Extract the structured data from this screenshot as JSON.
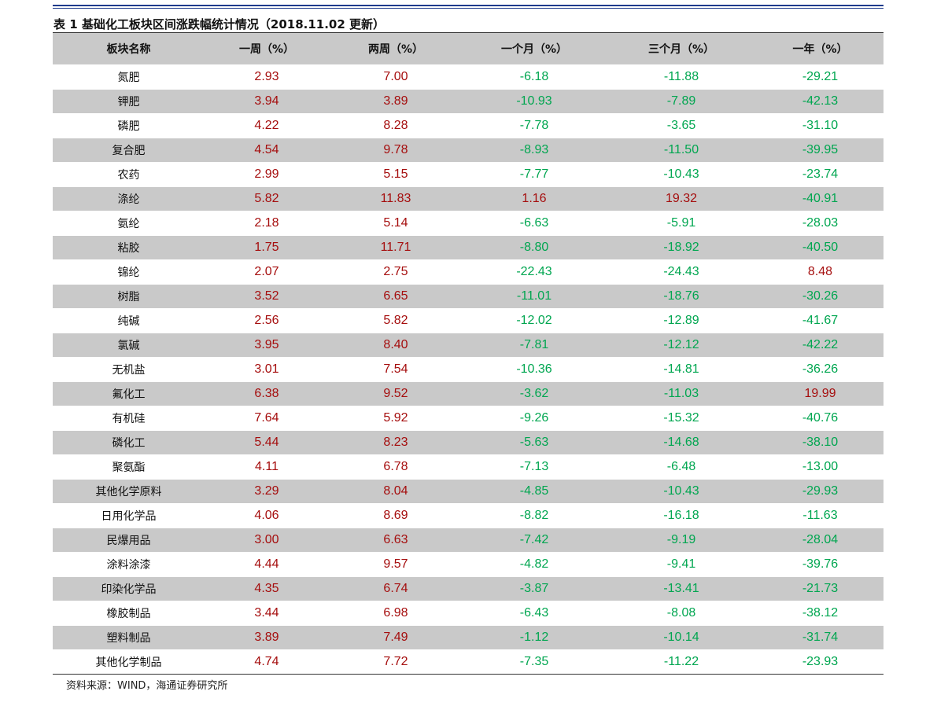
{
  "title": "表 1 基础化工板块区间涨跌幅统计情况（2018.11.02 更新）",
  "table": {
    "headers": [
      "板块名称",
      "一周（%）",
      "两周（%）",
      "一个月（%）",
      "三个月（%）",
      "一年（%）"
    ],
    "rows": [
      [
        "氮肥",
        "2.93",
        "7.00",
        "-6.18",
        "-11.88",
        "-29.21"
      ],
      [
        "钾肥",
        "3.94",
        "3.89",
        "-10.93",
        "-7.89",
        "-42.13"
      ],
      [
        "磷肥",
        "4.22",
        "8.28",
        "-7.78",
        "-3.65",
        "-31.10"
      ],
      [
        "复合肥",
        "4.54",
        "9.78",
        "-8.93",
        "-11.50",
        "-39.95"
      ],
      [
        "农药",
        "2.99",
        "5.15",
        "-7.77",
        "-10.43",
        "-23.74"
      ],
      [
        "涤纶",
        "5.82",
        "11.83",
        "1.16",
        "19.32",
        "-40.91"
      ],
      [
        "氨纶",
        "2.18",
        "5.14",
        "-6.63",
        "-5.91",
        "-28.03"
      ],
      [
        "粘胶",
        "1.75",
        "11.71",
        "-8.80",
        "-18.92",
        "-40.50"
      ],
      [
        "锦纶",
        "2.07",
        "2.75",
        "-22.43",
        "-24.43",
        "8.48"
      ],
      [
        "树脂",
        "3.52",
        "6.65",
        "-11.01",
        "-18.76",
        "-30.26"
      ],
      [
        "纯碱",
        "2.56",
        "5.82",
        "-12.02",
        "-12.89",
        "-41.67"
      ],
      [
        "氯碱",
        "3.95",
        "8.40",
        "-7.81",
        "-12.12",
        "-42.22"
      ],
      [
        "无机盐",
        "3.01",
        "7.54",
        "-10.36",
        "-14.81",
        "-36.26"
      ],
      [
        "氟化工",
        "6.38",
        "9.52",
        "-3.62",
        "-11.03",
        "19.99"
      ],
      [
        "有机硅",
        "7.64",
        "5.92",
        "-9.26",
        "-15.32",
        "-40.76"
      ],
      [
        "磷化工",
        "5.44",
        "8.23",
        "-5.63",
        "-14.68",
        "-38.10"
      ],
      [
        "聚氨酯",
        "4.11",
        "6.78",
        "-7.13",
        "-6.48",
        "-13.00"
      ],
      [
        "其他化学原料",
        "3.29",
        "8.04",
        "-4.85",
        "-10.43",
        "-29.93"
      ],
      [
        "日用化学品",
        "4.06",
        "8.69",
        "-8.82",
        "-16.18",
        "-11.63"
      ],
      [
        "民爆用品",
        "3.00",
        "6.63",
        "-7.42",
        "-9.19",
        "-28.04"
      ],
      [
        "涂料涂漆",
        "4.44",
        "9.57",
        "-4.82",
        "-9.41",
        "-39.76"
      ],
      [
        "印染化学品",
        "4.35",
        "6.74",
        "-3.87",
        "-13.41",
        "-21.73"
      ],
      [
        "橡胶制品",
        "3.44",
        "6.98",
        "-6.43",
        "-8.08",
        "-38.12"
      ],
      [
        "塑料制品",
        "3.89",
        "7.49",
        "-1.12",
        "-10.14",
        "-31.74"
      ],
      [
        "其他化学制品",
        "4.74",
        "7.72",
        "-7.35",
        "-11.22",
        "-23.93"
      ]
    ]
  },
  "source": "资料来源：WIND，海通证券研究所"
}
